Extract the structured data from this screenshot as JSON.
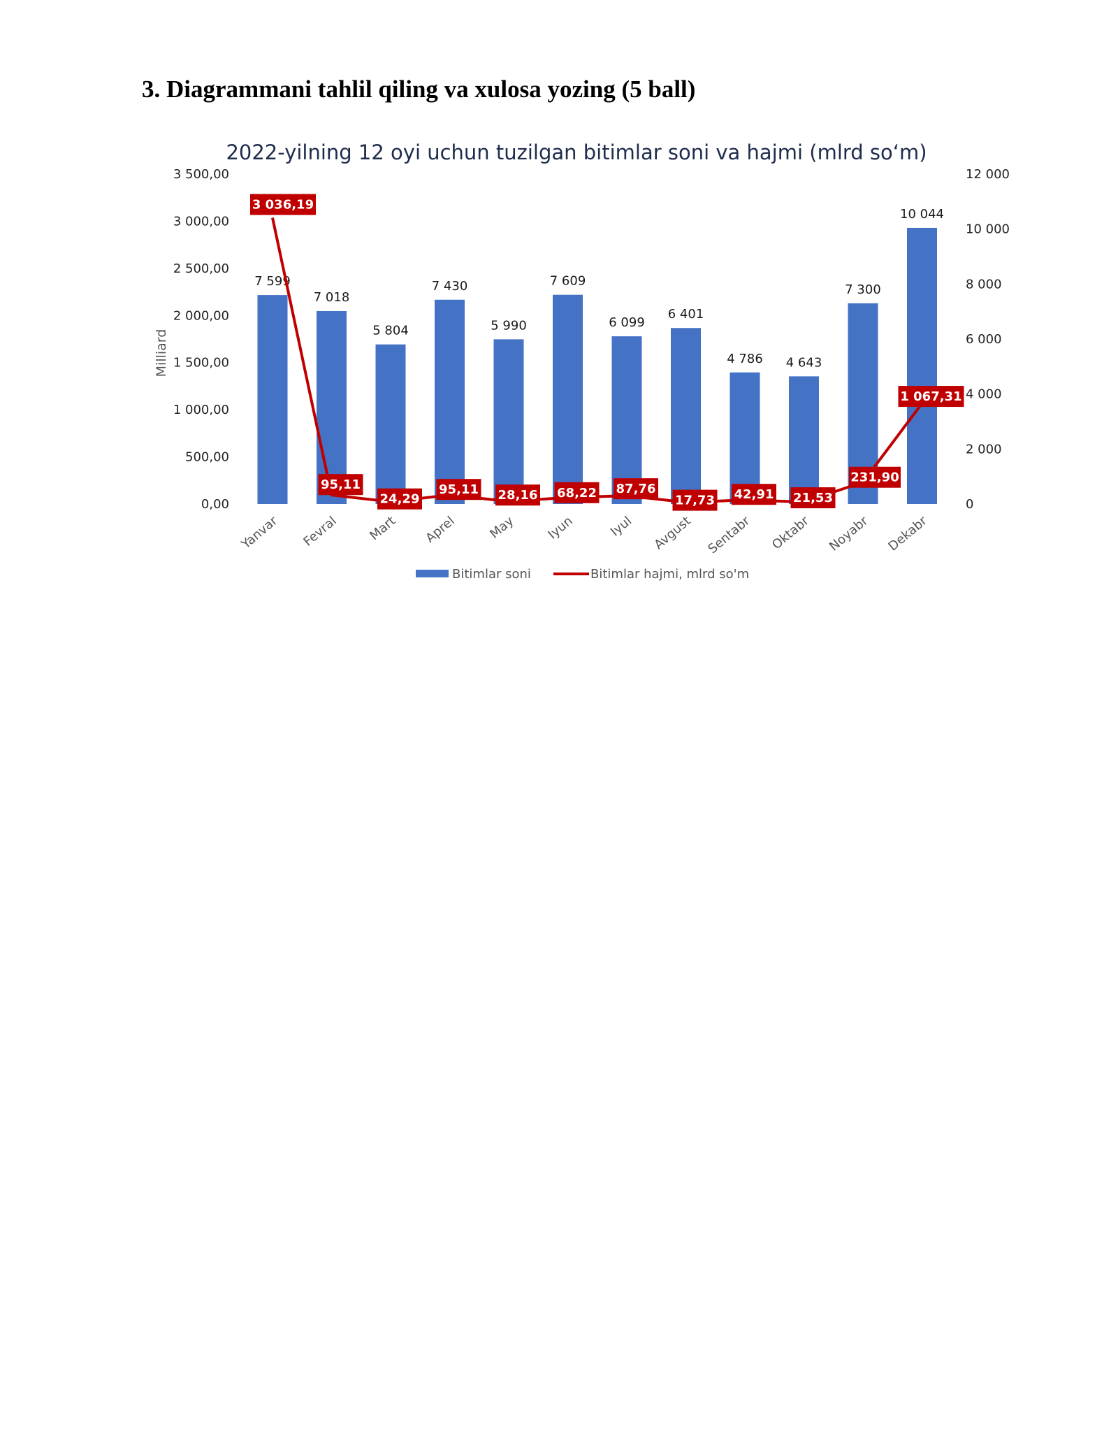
{
  "document": {
    "heading": "3. Diagrammani tahlil qiling va xulosa yozing (5 ball)"
  },
  "chart_data": {
    "type": "bar",
    "title": "2022-yilning 12 oyi uchun tuzilgan bitimlar soni va hajmi (mlrd so‘m)",
    "ylabel": "Milliard",
    "categories": [
      "Yanvar",
      "Fevral",
      "Mart",
      "Aprel",
      "May",
      "Iyun",
      "Iyul",
      "Avgust",
      "Sentabr",
      "Oktabr",
      "Noyabr",
      "Dekabr"
    ],
    "y_left": {
      "min": 0,
      "max": 3500,
      "ticks": [
        "0,00",
        "500,00",
        "1 000,00",
        "1 500,00",
        "2 000,00",
        "2 500,00",
        "3 000,00",
        "3 500,00"
      ]
    },
    "y_right": {
      "min": 0,
      "max": 12000,
      "ticks": [
        "0",
        "2 000",
        "4 000",
        "6 000",
        "8 000",
        "10 000",
        "12 000"
      ]
    },
    "grid": false,
    "legend_position": "bottom",
    "series": [
      {
        "name": "Bitimlar soni",
        "kind": "bar",
        "axis": "right",
        "color": "#4472c4",
        "values": [
          7599,
          7018,
          5804,
          7430,
          5990,
          7609,
          6099,
          6401,
          4786,
          4643,
          7300,
          10044
        ],
        "labels": [
          "7 599",
          "7 018",
          "5 804",
          "7 430",
          "5 990",
          "7 609",
          "6 099",
          "6 401",
          "4 786",
          "4 643",
          "7 300",
          "10 044"
        ]
      },
      {
        "name": "Bitimlar hajmi, mlrd so'm",
        "kind": "line",
        "axis": "left",
        "color": "#c00000",
        "values": [
          3036.19,
          95.11,
          24.29,
          95.11,
          28.16,
          68.22,
          87.76,
          17.73,
          42.91,
          21.53,
          231.9,
          1067.31
        ],
        "labels": [
          "3 036,19",
          "95,11",
          "24,29",
          "95,11",
          "28,16",
          "68,22",
          "87,76",
          "17,73",
          "42,91",
          "21,53",
          "231,90",
          "1 067,31"
        ]
      }
    ]
  }
}
